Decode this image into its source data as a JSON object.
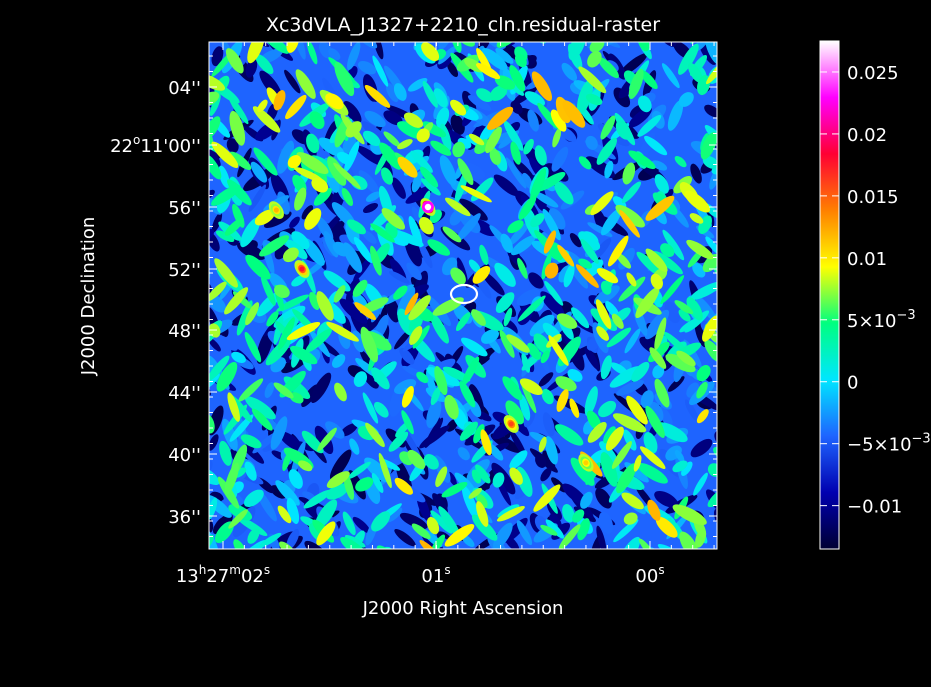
{
  "chart_data": {
    "type": "heatmap",
    "title": "Xc3dVLA_J1327+2210_cln.residual-raster",
    "xlabel": "J2000 Right Ascension",
    "ylabel": "J2000 Declination",
    "x_ticks": [
      {
        "h": "13",
        "m": "27",
        "s": "02",
        "text": "13h27m02s"
      },
      {
        "s": "01",
        "text": "01s"
      },
      {
        "s": "00",
        "text": "00s"
      }
    ],
    "y_ticks": [
      "04''",
      "22°11'00''",
      "56''",
      "52''",
      "48''",
      "44''",
      "40''",
      "36''"
    ],
    "y_tick_parts": [
      {
        "main": "04''"
      },
      {
        "deg": "22",
        "rest": "11'00''"
      },
      {
        "main": "56''"
      },
      {
        "main": "52''"
      },
      {
        "main": "48''"
      },
      {
        "main": "44''"
      },
      {
        "main": "40''"
      },
      {
        "main": "36''"
      }
    ],
    "colorbar": {
      "ticks": [
        0.025,
        0.02,
        0.015,
        0.01,
        0.005,
        0,
        -0.005,
        -0.01
      ],
      "tick_labels": [
        "0.025",
        "0.02",
        "0.015",
        "0.01",
        "5×10",
        "0",
        "−5×10",
        "−0.01"
      ],
      "tick_exponents": [
        "",
        "",
        "",
        "",
        "−3",
        "",
        "−3",
        ""
      ],
      "range": [
        -0.0135,
        0.0275
      ],
      "colormap": [
        "#000033",
        "#0000b0",
        "#1e64ff",
        "#00e6ff",
        "#00ff80",
        "#ffff00",
        "#ff8000",
        "#ff0033",
        "#ff00ff",
        "#ffffff"
      ]
    },
    "features": [
      {
        "type": "source",
        "ra_s": "01.04",
        "dec": "56''",
        "peak": 0.0275
      },
      {
        "type": "source",
        "ra_s": "01.63",
        "dec": "52''",
        "peak": 0.018
      },
      {
        "type": "source",
        "ra_s": "00.65",
        "dec": "42''",
        "peak": 0.016
      },
      {
        "type": "source",
        "ra_s": "01.75",
        "dec": "55.8''",
        "peak": 0.012
      },
      {
        "type": "source",
        "ra_s": "00.30",
        "dec": "39.5''",
        "peak": 0.011
      },
      {
        "type": "clean-region-outline",
        "color": "#ffffff",
        "ra_s": "00.93",
        "dec": "50.2''"
      }
    ],
    "grid": false
  }
}
